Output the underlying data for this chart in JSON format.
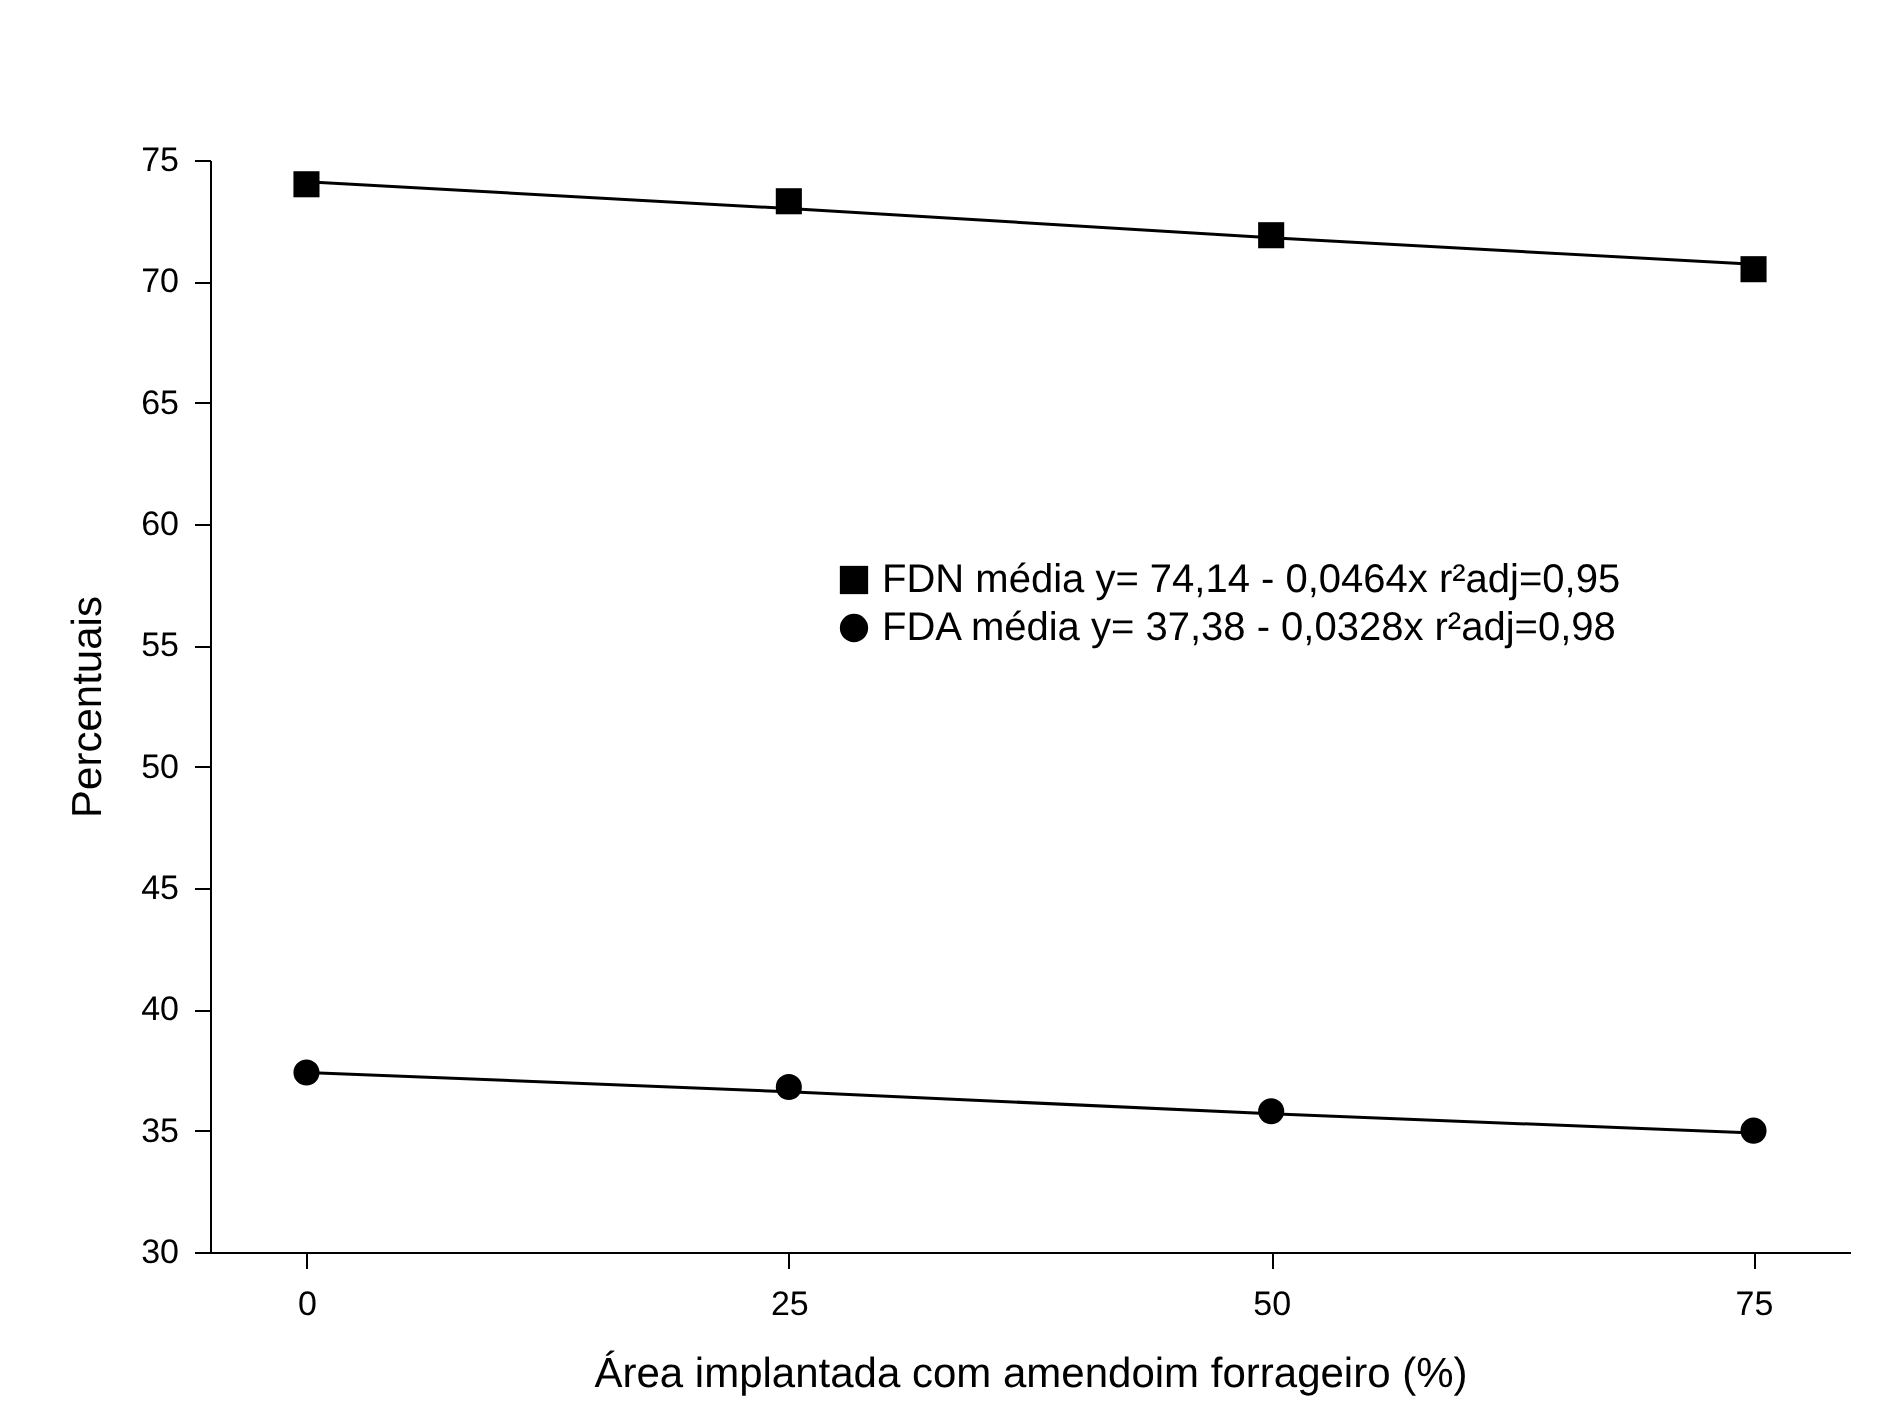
{
  "chart_data": {
    "type": "scatter",
    "xlabel": "Área implantada com amendoim forrageiro (%)",
    "ylabel": "Percentuais",
    "x": [
      0,
      25,
      50,
      75
    ],
    "series": [
      {
        "name": "FDN média y= 74,14 - 0,0464x  r²adj=0,95",
        "type": "scatter",
        "marker": "square",
        "color": "#000000",
        "values": [
          74.0,
          73.3,
          71.9,
          70.5
        ]
      },
      {
        "name": "FDA média y= 37,38 - 0,0328x  r²adj=0,98",
        "type": "scatter",
        "marker": "circle",
        "color": "#000000",
        "values": [
          37.4,
          36.8,
          35.8,
          35.0
        ]
      },
      {
        "type": "line",
        "color": "#000000",
        "values": [
          74.1,
          73.0,
          71.8,
          70.7
        ]
      },
      {
        "type": "line",
        "color": "#000000",
        "values": [
          37.4,
          36.6,
          35.7,
          34.9
        ]
      }
    ],
    "xlim": [
      -5,
      80
    ],
    "xticks": [
      0,
      25,
      50,
      75
    ],
    "ylim": [
      30,
      75
    ],
    "yticks": [
      30,
      35,
      40,
      45,
      50,
      55,
      60,
      65,
      70,
      75
    ],
    "grid": false,
    "legend": "right"
  }
}
